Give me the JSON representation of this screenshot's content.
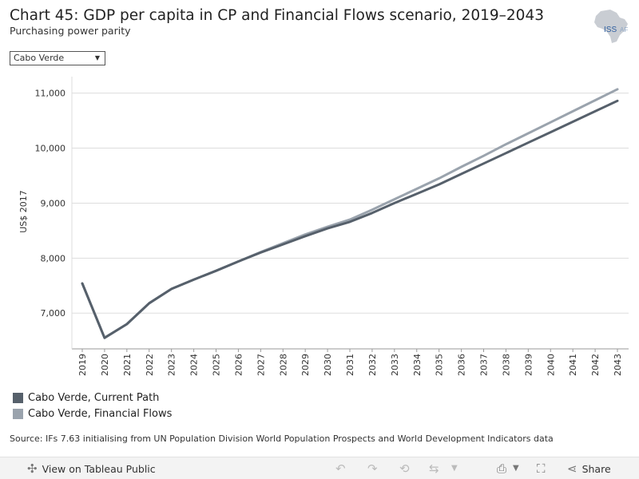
{
  "header": {
    "title": "Chart 45: GDP per capita in CP and Financial Flows scenario, 2019–2043",
    "subtitle": "Purchasing power parity",
    "logo_text": "ISS",
    "logo_text_suffix": "AF"
  },
  "filter": {
    "selected": "Cabo Verde"
  },
  "chart_data": {
    "type": "line",
    "title": "Chart 45: GDP per capita in CP and Financial Flows scenario, 2019–2043",
    "subtitle": "Purchasing power parity",
    "xlabel": "",
    "ylabel": "US$ 2017",
    "ylim": [
      6350,
      11300
    ],
    "yticks": [
      7000,
      8000,
      9000,
      10000,
      11000
    ],
    "ytick_labels": [
      "7,000",
      "8,000",
      "9,000",
      "10,000",
      "11,000"
    ],
    "grid": true,
    "x": [
      "2019",
      "2020",
      "2021",
      "2022",
      "2023",
      "2024",
      "2025",
      "2026",
      "2027",
      "2028",
      "2029",
      "2030",
      "2031",
      "2032",
      "2033",
      "2034",
      "2035",
      "2036",
      "2037",
      "2038",
      "2039",
      "2040",
      "2041",
      "2042",
      "2043"
    ],
    "series": [
      {
        "name": "Cabo Verde, Current Path",
        "color": "#56606b",
        "values": [
          7540,
          6550,
          6800,
          7180,
          7440,
          7610,
          7770,
          7940,
          8100,
          8250,
          8400,
          8540,
          8660,
          8820,
          9000,
          9170,
          9340,
          9530,
          9720,
          9910,
          10100,
          10290,
          10480,
          10670,
          10860
        ]
      },
      {
        "name": "Cabo Verde, Financial Flows",
        "color": "#9aa3ad",
        "values": [
          7540,
          6550,
          6800,
          7180,
          7440,
          7610,
          7770,
          7940,
          8110,
          8270,
          8430,
          8570,
          8700,
          8880,
          9070,
          9260,
          9450,
          9660,
          9860,
          10070,
          10270,
          10470,
          10670,
          10870,
          11070
        ]
      }
    ]
  },
  "legend": [
    {
      "label": "Cabo Verde, Current Path",
      "color": "#56606b"
    },
    {
      "label": "Cabo Verde, Financial Flows",
      "color": "#9aa3ad"
    }
  ],
  "source": "Source: IFs 7.63 initialising from UN Population Division World Population Prospects and World Development Indicators data",
  "toolbar": {
    "view_label": "View on Tableau Public",
    "share_label": "Share"
  },
  "colors": {
    "gridline": "#dddddd",
    "axis": "#999999",
    "logo_blue": "#2f5f9f",
    "logo_map": "#c9cdd3"
  }
}
